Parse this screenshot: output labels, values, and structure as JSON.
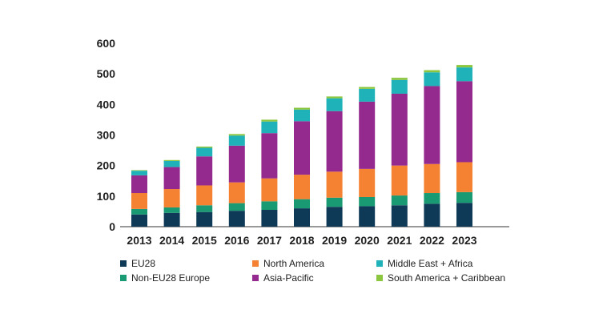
{
  "chart_data": {
    "type": "bar",
    "stacked": true,
    "title": "",
    "xlabel": "",
    "ylabel": "",
    "ylim": [
      0,
      600
    ],
    "yticks": [
      0,
      100,
      200,
      300,
      400,
      500,
      600
    ],
    "grid": false,
    "legend_position": "bottom",
    "categories": [
      "2013",
      "2014",
      "2015",
      "2016",
      "2017",
      "2018",
      "2019",
      "2020",
      "2021",
      "2022",
      "2023"
    ],
    "series": [
      {
        "name": "EU28",
        "color": "#0f3a57",
        "values": [
          40,
          45,
          48,
          52,
          55,
          60,
          65,
          67,
          70,
          75,
          78
        ]
      },
      {
        "name": "Non-EU28 Europe",
        "color": "#1a9a73",
        "values": [
          18,
          18,
          22,
          25,
          28,
          30,
          30,
          30,
          32,
          35,
          35
        ]
      },
      {
        "name": "North America",
        "color": "#f58132",
        "values": [
          52,
          60,
          65,
          68,
          75,
          80,
          85,
          92,
          98,
          95,
          98
        ]
      },
      {
        "name": "Asia-Pacific",
        "color": "#952a8e",
        "values": [
          58,
          72,
          95,
          120,
          148,
          175,
          198,
          220,
          235,
          255,
          265
        ]
      },
      {
        "name": "Middle East + Africa",
        "color": "#1fb2b8",
        "values": [
          15,
          20,
          28,
          33,
          38,
          38,
          42,
          42,
          45,
          45,
          45
        ]
      },
      {
        "name": "South America + Caribbean",
        "color": "#8cc63f",
        "values": [
          2,
          3,
          4,
          5,
          6,
          6,
          6,
          6,
          7,
          7,
          8
        ]
      }
    ]
  }
}
